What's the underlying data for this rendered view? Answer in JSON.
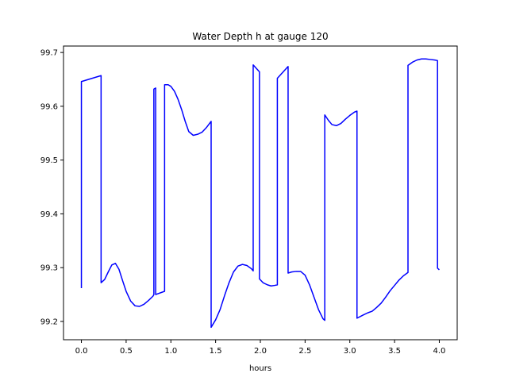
{
  "chart_data": {
    "type": "line",
    "title": "Water Depth h at gauge 120",
    "xlabel": "hours",
    "ylabel": "",
    "xlim": [
      -0.2,
      4.2
    ],
    "ylim": [
      99.166,
      99.712
    ],
    "xticks": [
      0.0,
      0.5,
      1.0,
      1.5,
      2.0,
      2.5,
      3.0,
      3.5,
      4.0
    ],
    "xtick_labels": [
      "0.0",
      "0.5",
      "1.0",
      "1.5",
      "2.0",
      "2.5",
      "3.0",
      "3.5",
      "4.0"
    ],
    "yticks": [
      99.2,
      99.3,
      99.4,
      99.5,
      99.6,
      99.7
    ],
    "ytick_labels": [
      "99.2",
      "99.3",
      "99.4",
      "99.5",
      "99.6",
      "99.7"
    ],
    "grid": false,
    "legend": "none",
    "series": [
      {
        "color": "#0000ff",
        "x": [
          0.0,
          0.0,
          0.22,
          0.22,
          0.26,
          0.3,
          0.34,
          0.38,
          0.42,
          0.46,
          0.5,
          0.55,
          0.6,
          0.65,
          0.7,
          0.75,
          0.8,
          0.81,
          0.81,
          0.83,
          0.83,
          0.93,
          0.93,
          0.97,
          1.0,
          1.04,
          1.08,
          1.12,
          1.16,
          1.2,
          1.25,
          1.3,
          1.35,
          1.4,
          1.45,
          1.45,
          1.5,
          1.55,
          1.6,
          1.65,
          1.7,
          1.75,
          1.8,
          1.85,
          1.9,
          1.92,
          1.92,
          1.99,
          1.99,
          2.03,
          2.08,
          2.12,
          2.16,
          2.19,
          2.19,
          2.31,
          2.31,
          2.35,
          2.4,
          2.45,
          2.5,
          2.55,
          2.6,
          2.65,
          2.7,
          2.72,
          2.72,
          2.76,
          2.8,
          2.85,
          2.9,
          2.95,
          3.0,
          3.05,
          3.08,
          3.08,
          3.15,
          3.2,
          3.25,
          3.3,
          3.35,
          3.4,
          3.45,
          3.5,
          3.55,
          3.6,
          3.65,
          3.65,
          3.7,
          3.75,
          3.8,
          3.85,
          3.9,
          3.95,
          3.98,
          3.98,
          4.0
        ],
        "y": [
          99.262,
          99.646,
          99.657,
          99.272,
          99.278,
          99.292,
          99.305,
          99.308,
          99.297,
          99.276,
          99.256,
          99.238,
          99.229,
          99.228,
          99.232,
          99.239,
          99.247,
          99.25,
          99.632,
          99.634,
          99.25,
          99.256,
          99.64,
          99.64,
          99.637,
          99.628,
          99.613,
          99.594,
          99.572,
          99.553,
          99.546,
          99.548,
          99.552,
          99.561,
          99.572,
          99.189,
          99.203,
          99.222,
          99.248,
          99.272,
          99.292,
          99.303,
          99.306,
          99.304,
          99.298,
          99.294,
          99.677,
          99.664,
          99.279,
          99.272,
          99.268,
          99.266,
          99.267,
          99.268,
          99.652,
          99.674,
          99.29,
          99.292,
          99.293,
          99.293,
          99.286,
          99.268,
          99.245,
          99.222,
          99.205,
          99.202,
          99.584,
          99.574,
          99.566,
          99.564,
          99.568,
          99.576,
          99.583,
          99.589,
          99.591,
          99.206,
          99.212,
          99.216,
          99.219,
          99.226,
          99.234,
          99.245,
          99.257,
          99.267,
          99.277,
          99.285,
          99.291,
          99.676,
          99.682,
          99.686,
          99.688,
          99.688,
          99.687,
          99.686,
          99.685,
          99.299,
          99.296
        ]
      }
    ]
  }
}
